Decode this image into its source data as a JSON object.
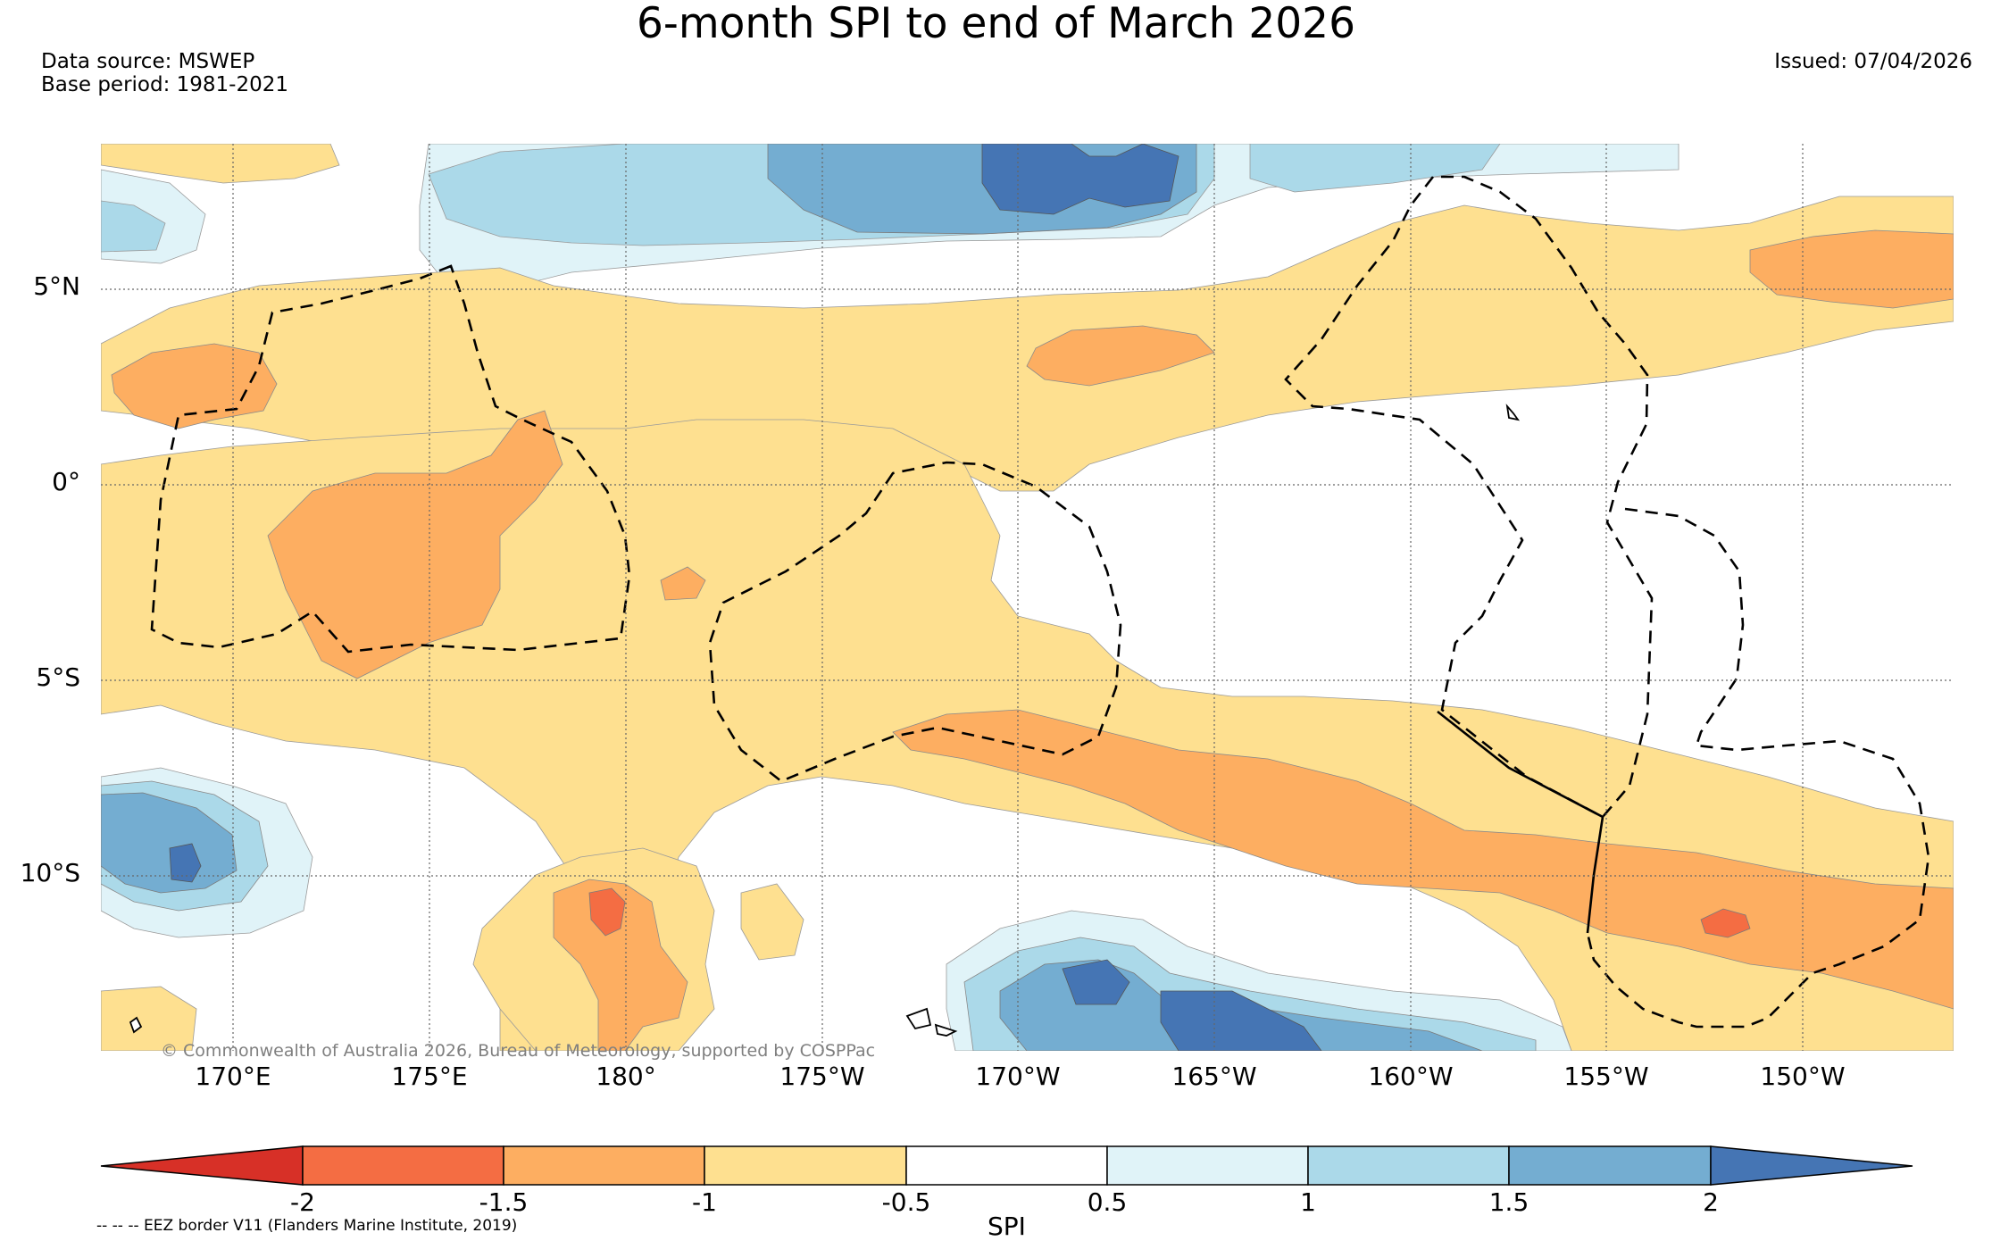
{
  "header": {
    "title": "6-month SPI to end of March 2026",
    "source_line": "Data source: MSWEP",
    "base_period_line": "Base period: 1981-2021",
    "issued_line": "Issued: 07/04/2026"
  },
  "map": {
    "lat_labels": [
      "5°N",
      "0°",
      "5°S",
      "10°S"
    ],
    "lon_labels": [
      "170°E",
      "175°E",
      "180°",
      "175°W",
      "170°W",
      "165°W",
      "160°W",
      "155°W",
      "150°W"
    ],
    "copyright": "© Commonwealth of Australia 2026, Bureau of Meteorology, supported by COSPPac",
    "colors": {
      "lt_m2": "#d73027",
      "m2_m15": "#f46d43",
      "m15_m1": "#fdae61",
      "m1_m05": "#fee090",
      "m05_05": "#ffffff",
      "p05_1": "#e0f3f8",
      "p1_15": "#abd9e9",
      "p15_2": "#74add1",
      "gt_2": "#4575b4"
    }
  },
  "colorbar": {
    "label": "SPI",
    "ticks": [
      "-2",
      "-1.5",
      "-1",
      "-0.5",
      "0.5",
      "1",
      "1.5",
      "2"
    ]
  },
  "legend": {
    "eez": "-- -- -- EEZ border V11 (Flanders Marine Institute, 2019)"
  }
}
